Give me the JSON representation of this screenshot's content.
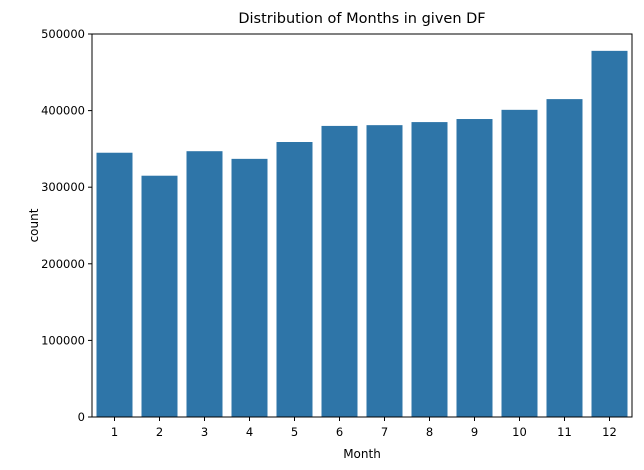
{
  "chart_data": {
    "type": "bar",
    "title": "Distribution of Months in given DF",
    "xlabel": "Month",
    "ylabel": "count",
    "categories": [
      "1",
      "2",
      "3",
      "4",
      "5",
      "6",
      "7",
      "8",
      "9",
      "10",
      "11",
      "12"
    ],
    "values": [
      345000,
      315000,
      347000,
      337000,
      359000,
      380000,
      381000,
      385000,
      389000,
      401000,
      415000,
      478000
    ],
    "ylim": [
      0,
      500000
    ],
    "yticks": [
      0,
      100000,
      200000,
      300000,
      400000,
      500000
    ],
    "ytick_labels": [
      "0",
      "100000",
      "200000",
      "300000",
      "400000",
      "500000"
    ],
    "grid": false,
    "bar_color": "#2e75a8"
  }
}
